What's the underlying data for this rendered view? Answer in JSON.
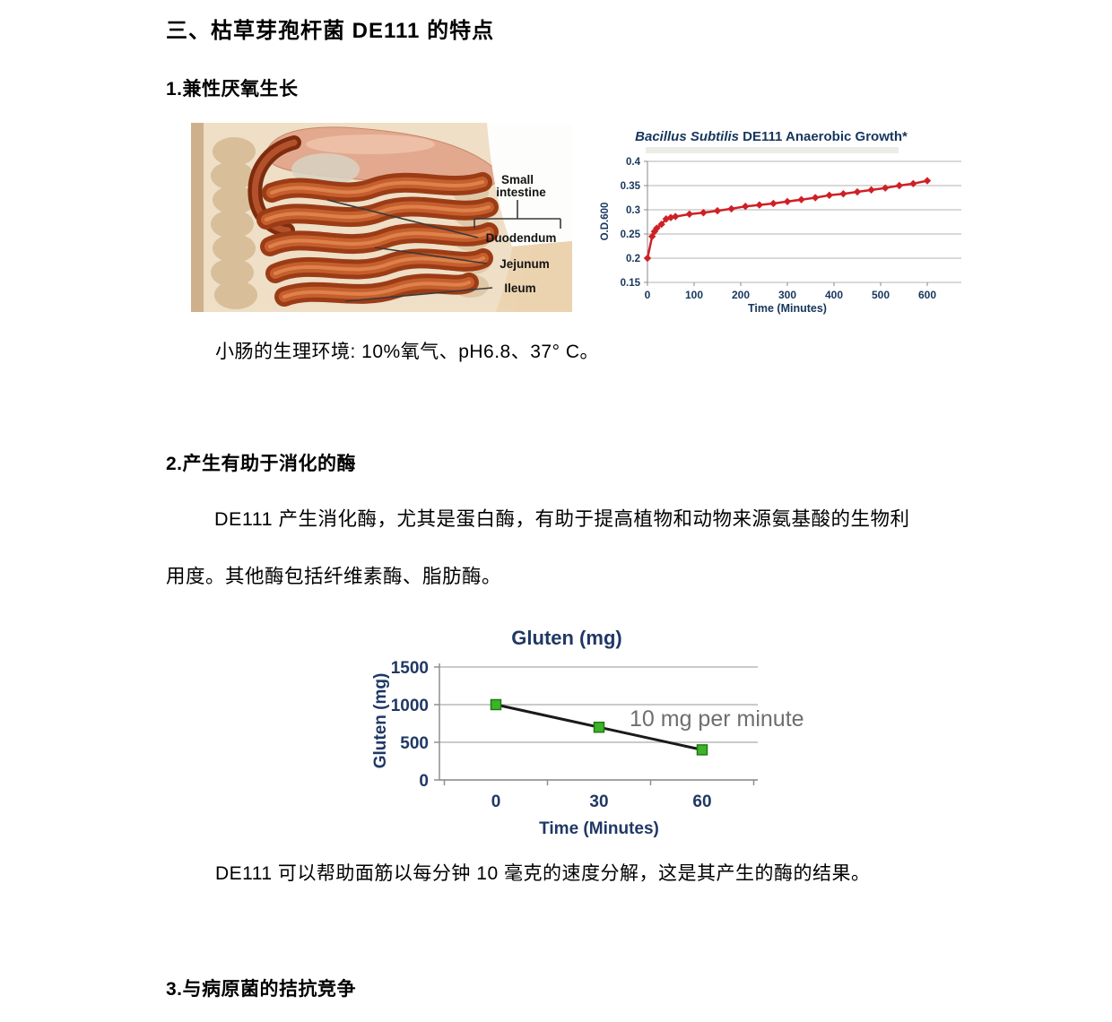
{
  "document": {
    "heading": "三、枯草芽孢杆菌 DE111 的特点",
    "sections": [
      {
        "title": "1.兼性厌氧生长",
        "caption": "小肠的生理环境: 10%氧气、pH6.8、37° C。"
      },
      {
        "title": "2.产生有助于消化的酶",
        "paragraph": "DE111 产生消化酶，尤其是蛋白酶，有助于提高植物和动物来源氨基酸的生物利\n用度。其他酶包括纤维素酶、脂肪酶。",
        "caption": "DE111 可以帮助面筋以每分钟 10 毫克的速度分解，这是其产生的酶的结果。"
      },
      {
        "title": "3.与病原菌的拮抗竞争"
      }
    ]
  },
  "anatomy_figure": {
    "labels": {
      "small_intestine_line1": "Small",
      "small_intestine_line2": "intestine",
      "duodendum": "Duodendum",
      "jejunum": "Jejunum",
      "ileum": "Ileum"
    }
  },
  "chart_data": [
    {
      "type": "line",
      "title": "Bacillus Subtilis DE111 Anaerobic Growth*",
      "title_italic_part": "Bacillus Subtilis",
      "title_regular_part": " DE111 Anaerobic Growth*",
      "xlabel": "Time (Minutes)",
      "ylabel": "O.D.600",
      "xlim": [
        0,
        620
      ],
      "ylim": [
        0.15,
        0.4
      ],
      "xticks": [
        0,
        100,
        200,
        300,
        400,
        500,
        600
      ],
      "yticks": [
        0.15,
        0.2,
        0.25,
        0.3,
        0.35,
        0.4
      ],
      "grid": "horizontal",
      "legend_position": "none",
      "axis_text_color": "#17365d",
      "series": [
        {
          "name": "O.D.600",
          "color": "#cf2026",
          "marker": "diamond",
          "x": [
            0,
            10,
            15,
            20,
            30,
            40,
            50,
            60,
            90,
            120,
            150,
            180,
            210,
            240,
            270,
            300,
            330,
            360,
            390,
            420,
            450,
            480,
            510,
            540,
            570,
            600
          ],
          "y": [
            0.2,
            0.245,
            0.255,
            0.262,
            0.27,
            0.281,
            0.284,
            0.286,
            0.291,
            0.294,
            0.298,
            0.302,
            0.307,
            0.31,
            0.313,
            0.317,
            0.321,
            0.325,
            0.33,
            0.333,
            0.337,
            0.341,
            0.345,
            0.35,
            0.354,
            0.36
          ]
        }
      ]
    },
    {
      "type": "line",
      "title": "Gluten (mg)",
      "xlabel": "Time (Minutes)",
      "ylabel": "Gluten (mg)",
      "xlim": [
        -15,
        75
      ],
      "ylim": [
        0,
        1500
      ],
      "xticks": [
        0,
        30,
        60
      ],
      "yticks": [
        0,
        500,
        1000,
        1500
      ],
      "grid": "horizontal",
      "legend_position": "none",
      "axis_text_color": "#1f3864",
      "annotation": "10 mg per minute",
      "annotation_color": "#6e6e6e",
      "series": [
        {
          "name": "Gluten",
          "color": "#1a1a1a",
          "marker": "square",
          "marker_color": "#3db32a",
          "marker_edge": "#1f7a12",
          "x": [
            0,
            30,
            60
          ],
          "y": [
            1000,
            700,
            400
          ]
        }
      ]
    }
  ],
  "colors": {
    "chart_title_navy": "#17365d",
    "grid_gray": "#b3b3b3",
    "intestine_red": "#9c3c16",
    "flesh": "#eedfc6"
  }
}
